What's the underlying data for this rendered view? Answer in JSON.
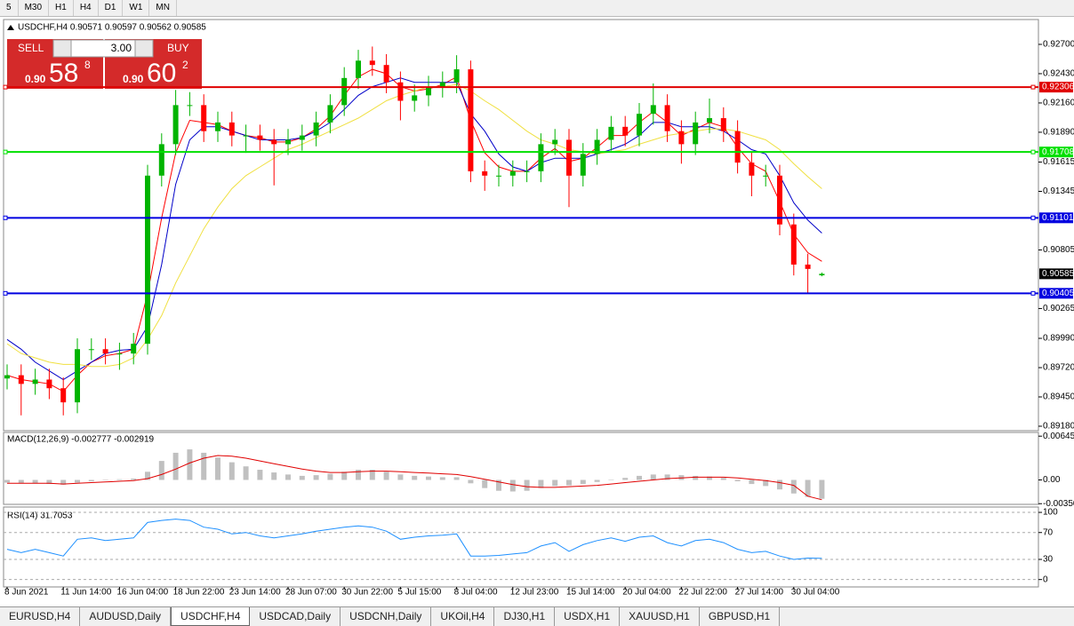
{
  "toolbar": [
    "5",
    "M30",
    "H1",
    "H4",
    "D1",
    "W1",
    "MN"
  ],
  "trade_panel": {
    "sell": "SELL",
    "buy": "BUY",
    "lot": "3.00",
    "sell_price": {
      "big": "0.90",
      "pips": "58",
      "point": "8"
    },
    "buy_price": {
      "big": "0.90",
      "pips": "60",
      "point": "2"
    }
  },
  "tabs": [
    "EURUSD,H4",
    "AUDUSD,Daily",
    "USDCHF,H4",
    "USDCAD,Daily",
    "USDCNH,Daily",
    "UKOil,H4",
    "DJ30,H1",
    "USDX,H1",
    "XAUUSD,H1",
    "GBPUSD,H1"
  ],
  "chart_data": [
    {
      "type": "candlestick",
      "title": "USDCHF,H4  0.90571 0.90597 0.90562 0.90585",
      "up_color": "#00b400",
      "down_color": "#ff0000",
      "categories": [
        "8 Jun 2021",
        null,
        null,
        null,
        "11 Jun 14:00",
        null,
        null,
        null,
        "16 Jun 04:00",
        null,
        null,
        null,
        "18 Jun 22:00",
        null,
        null,
        null,
        "23 Jun 14:00",
        null,
        null,
        null,
        "28 Jun 07:00",
        null,
        null,
        null,
        "30 Jun 22:00",
        null,
        null,
        null,
        "5 Jul 15:00",
        null,
        null,
        null,
        "8 Jul 04:00",
        null,
        null,
        null,
        "12 Jul 23:00",
        null,
        null,
        null,
        "15 Jul 14:00",
        null,
        null,
        null,
        "20 Jul 04:00",
        null,
        null,
        null,
        "22 Jul 22:00",
        null,
        null,
        null,
        "27 Jul 14:00",
        null,
        null,
        null,
        "30 Jul 04:00",
        null,
        null
      ],
      "open": [
        0.8962,
        0.8965,
        0.8957,
        0.8961,
        0.8953,
        0.894,
        0.8989,
        0.8989,
        0.8985,
        0.8985,
        0.8994,
        0.9149,
        0.9178,
        0.9214,
        0.9214,
        0.919,
        0.9198,
        0.9186,
        0.9186,
        0.9182,
        0.9178,
        0.9182,
        0.9186,
        0.9198,
        0.9214,
        0.9239,
        0.9255,
        0.9251,
        0.9235,
        0.9218,
        0.9223,
        0.9231,
        0.9235,
        0.9247,
        0.9153,
        0.9149,
        0.9149,
        0.9153,
        0.9153,
        0.9178,
        0.9182,
        0.9149,
        0.9169,
        0.9182,
        0.9194,
        0.9186,
        0.9206,
        0.9214,
        0.919,
        0.9178,
        0.9198,
        0.9202,
        0.919,
        0.9161,
        0.9149,
        0.9149,
        0.9104,
        0.9067,
        0.90571
      ],
      "high": [
        0.8975,
        0.8975,
        0.8971,
        0.8971,
        0.8963,
        0.8999,
        0.8999,
        0.8999,
        0.8995,
        0.9004,
        0.9159,
        0.9188,
        0.9228,
        0.9226,
        0.9224,
        0.9208,
        0.9208,
        0.9196,
        0.9196,
        0.9192,
        0.9192,
        0.9196,
        0.9208,
        0.9224,
        0.9249,
        0.9265,
        0.9268,
        0.9261,
        0.9245,
        0.9233,
        0.9241,
        0.9245,
        0.926,
        0.9255,
        0.9163,
        0.9159,
        0.9163,
        0.9163,
        0.9188,
        0.9192,
        0.9192,
        0.9179,
        0.9192,
        0.9204,
        0.9204,
        0.9216,
        0.9234,
        0.9224,
        0.92,
        0.9208,
        0.922,
        0.9212,
        0.92,
        0.9171,
        0.9159,
        0.9159,
        0.9114,
        0.9077,
        0.90597
      ],
      "low": [
        0.8952,
        0.8928,
        0.8947,
        0.8943,
        0.8928,
        0.893,
        0.8979,
        0.8975,
        0.897,
        0.8975,
        0.8984,
        0.9139,
        0.9168,
        0.9204,
        0.918,
        0.918,
        0.9176,
        0.917,
        0.9172,
        0.914,
        0.9168,
        0.9172,
        0.9176,
        0.9188,
        0.9204,
        0.9229,
        0.9241,
        0.9225,
        0.92,
        0.9208,
        0.9213,
        0.9221,
        0.9225,
        0.9143,
        0.9135,
        0.9139,
        0.9139,
        0.9143,
        0.9143,
        0.9168,
        0.912,
        0.9139,
        0.9159,
        0.9172,
        0.9176,
        0.9176,
        0.9196,
        0.918,
        0.916,
        0.9168,
        0.9188,
        0.918,
        0.9151,
        0.913,
        0.9139,
        0.9094,
        0.9057,
        0.904,
        0.90562
      ],
      "close": [
        0.8965,
        0.8957,
        0.8961,
        0.8953,
        0.894,
        0.8989,
        0.8989,
        0.8985,
        0.8985,
        0.8994,
        0.9149,
        0.9178,
        0.9214,
        0.9214,
        0.919,
        0.9198,
        0.9186,
        0.9186,
        0.9182,
        0.9178,
        0.9182,
        0.9186,
        0.9198,
        0.9214,
        0.9239,
        0.9255,
        0.9251,
        0.9235,
        0.9218,
        0.9223,
        0.9231,
        0.9235,
        0.9247,
        0.9153,
        0.9149,
        0.9149,
        0.9153,
        0.9153,
        0.9178,
        0.9182,
        0.9149,
        0.9169,
        0.9182,
        0.9194,
        0.9186,
        0.9206,
        0.9214,
        0.919,
        0.9178,
        0.9198,
        0.9202,
        0.919,
        0.9161,
        0.9149,
        0.9149,
        0.9104,
        0.9067,
        0.9063,
        0.90585
      ],
      "lines": [
        {
          "color": "#ff0000",
          "values": [
            0.8965,
            0.8961,
            0.8959,
            0.8957,
            0.895,
            0.8965,
            0.8977,
            0.8983,
            0.8985,
            0.8989,
            0.904,
            0.911,
            0.917,
            0.92,
            0.9198,
            0.9196,
            0.919,
            0.9186,
            0.9184,
            0.918,
            0.918,
            0.9184,
            0.9192,
            0.9204,
            0.9223,
            0.924,
            0.9247,
            0.9243,
            0.9231,
            0.9227,
            0.9229,
            0.9233,
            0.924,
            0.92,
            0.917,
            0.9157,
            0.9153,
            0.9153,
            0.9165,
            0.9174,
            0.9162,
            0.9165,
            0.9175,
            0.9186,
            0.9186,
            0.9198,
            0.9208,
            0.9198,
            0.9186,
            0.9192,
            0.9198,
            0.9194,
            0.9175,
            0.916,
            0.9153,
            0.9125,
            0.9095,
            0.9078,
            0.907
          ]
        },
        {
          "color": "#0000c8",
          "values": [
            0.8998,
            0.8989,
            0.8977,
            0.8969,
            0.8961,
            0.8969,
            0.8977,
            0.8985,
            0.8988,
            0.8989,
            0.901,
            0.9067,
            0.9141,
            0.9182,
            0.9194,
            0.9194,
            0.919,
            0.9186,
            0.9182,
            0.9182,
            0.9182,
            0.9184,
            0.919,
            0.9198,
            0.921,
            0.9223,
            0.9231,
            0.9235,
            0.9239,
            0.9235,
            0.9235,
            0.9235,
            0.9235,
            0.9206,
            0.919,
            0.9169,
            0.9157,
            0.9153,
            0.9161,
            0.9165,
            0.9165,
            0.9165,
            0.9169,
            0.9173,
            0.9178,
            0.9186,
            0.9198,
            0.9198,
            0.9194,
            0.9194,
            0.9194,
            0.919,
            0.9182,
            0.9173,
            0.9169,
            0.9149,
            0.9124,
            0.9108,
            0.9096
          ]
        },
        {
          "color": "#f0e040",
          "values": [
            0.8994,
            0.8985,
            0.8981,
            0.8977,
            0.8975,
            0.8975,
            0.8973,
            0.8973,
            0.8975,
            0.8981,
            0.8998,
            0.902,
            0.905,
            0.9075,
            0.91,
            0.912,
            0.9137,
            0.9149,
            0.9157,
            0.9165,
            0.9173,
            0.9178,
            0.9184,
            0.919,
            0.9196,
            0.9202,
            0.921,
            0.9218,
            0.9223,
            0.9227,
            0.9231,
            0.9231,
            0.9233,
            0.9227,
            0.9218,
            0.921,
            0.92,
            0.919,
            0.9182,
            0.9178,
            0.9173,
            0.9171,
            0.9169,
            0.9171,
            0.9173,
            0.9178,
            0.9182,
            0.9186,
            0.9188,
            0.919,
            0.9192,
            0.9192,
            0.919,
            0.9186,
            0.9182,
            0.9173,
            0.916,
            0.9148,
            0.9137
          ]
        }
      ],
      "levels": [
        {
          "value": 0.92306,
          "color": "#e00000"
        },
        {
          "value": 0.91708,
          "color": "#00e000"
        },
        {
          "value": 0.91101,
          "color": "#0000e0"
        },
        {
          "value": 0.90405,
          "color": "#0000e0"
        }
      ],
      "ylim": [
        0.89139,
        0.92929
      ],
      "yticks": [
        {
          "value": 0.927,
          "label": "0.92700"
        },
        {
          "value": 0.9243,
          "label": "0.92430"
        },
        {
          "value": 0.9216,
          "label": "0.92160"
        },
        {
          "value": 0.9189,
          "label": "0.91890"
        },
        0.91615,
        0.91345,
        0.90805,
        0.90265,
        {
          "value": 0.8999,
          "label": "0.89990"
        },
        {
          "value": 0.8972,
          "label": "0.89720"
        },
        {
          "value": 0.8945,
          "label": "0.89450"
        },
        {
          "value": 0.8918,
          "label": "0.89180"
        }
      ]
    },
    {
      "type": "macd",
      "title": "MACD(12,26,9) -0.002777 -0.002919",
      "color": "#c0c0c0",
      "values": [
        -0.0004,
        -0.0005,
        -0.0005,
        -0.0006,
        -0.0007,
        -0.0004,
        -0.0002,
        0.0,
        0.0001,
        0.0002,
        0.0012,
        0.0028,
        0.004,
        0.0045,
        0.004,
        0.0033,
        0.0026,
        0.002,
        0.0015,
        0.0011,
        0.0008,
        0.0006,
        0.0007,
        0.0009,
        0.0012,
        0.0015,
        0.0015,
        0.0012,
        0.0008,
        0.0006,
        0.0005,
        0.0004,
        0.0004,
        -0.0005,
        -0.0012,
        -0.0016,
        -0.0017,
        -0.0016,
        -0.0012,
        -0.0009,
        -0.0008,
        -0.0006,
        -0.0003,
        0.0,
        0.0003,
        0.0006,
        0.0008,
        0.0008,
        0.0007,
        0.0006,
        0.0005,
        0.0003,
        -0.0002,
        -0.0006,
        -0.0009,
        -0.0014,
        -0.002,
        -0.0025,
        -0.002777
      ],
      "signal": {
        "color": "#e00000",
        "values": [
          -0.0005,
          -0.0005,
          -0.0005,
          -0.0005,
          -0.0006,
          -0.0005,
          -0.0004,
          -0.0003,
          -0.0002,
          -0.0001,
          0.0002,
          0.0008,
          0.0016,
          0.0025,
          0.0032,
          0.0036,
          0.0035,
          0.0032,
          0.0028,
          0.0024,
          0.002,
          0.0016,
          0.0013,
          0.0011,
          0.0011,
          0.0012,
          0.0013,
          0.0013,
          0.0012,
          0.0011,
          0.001,
          0.0009,
          0.0008,
          0.0005,
          0.0001,
          -0.0003,
          -0.0007,
          -0.001,
          -0.0011,
          -0.0011,
          -0.001,
          -0.0009,
          -0.0008,
          -0.0006,
          -0.0004,
          -0.0002,
          0.0,
          0.0002,
          0.0003,
          0.0004,
          0.0004,
          0.0004,
          0.0003,
          0.0001,
          -0.0001,
          -0.0004,
          -0.0008,
          -0.0024,
          -0.002919
        ]
      },
      "ylim": [
        -0.0036,
        0.007
      ],
      "yticks": [
        0.006451,
        {
          "value": 0,
          "label": "0.00"
        },
        {
          "value": -0.0035,
          "label": "-0.00350"
        }
      ]
    },
    {
      "type": "line",
      "title": "RSI(14) 31.7053",
      "color": "#1e90ff",
      "grid": true,
      "values": [
        45,
        40,
        45,
        40,
        35,
        60,
        62,
        58,
        60,
        62,
        85,
        88,
        90,
        88,
        78,
        75,
        68,
        70,
        65,
        62,
        65,
        68,
        72,
        75,
        78,
        80,
        78,
        72,
        60,
        63,
        65,
        66,
        68,
        35,
        35,
        36,
        38,
        40,
        50,
        55,
        42,
        52,
        58,
        62,
        57,
        63,
        65,
        55,
        50,
        58,
        60,
        55,
        45,
        40,
        42,
        35,
        30,
        32,
        31.7053
      ],
      "ylim": [
        -11,
        108
      ],
      "yticks": [
        100,
        70,
        30,
        0
      ]
    }
  ]
}
